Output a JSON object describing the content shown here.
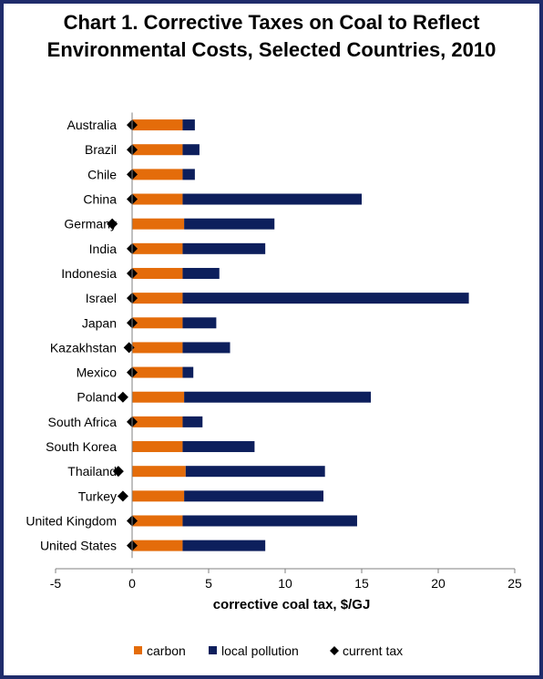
{
  "chart_data": {
    "type": "bar",
    "orientation": "horizontal",
    "stacked": true,
    "title_line1": "Chart 1. Corrective Taxes on Coal to Reflect",
    "title_line2": "Environmental Costs, Selected Countries, 2010",
    "xlabel": "corrective coal tax, $/GJ",
    "ylabel": "",
    "xlim": [
      -5,
      25
    ],
    "xticks": [
      -5,
      0,
      5,
      10,
      15,
      20,
      25
    ],
    "grid": false,
    "legend_position": "bottom",
    "categories": [
      "Australia",
      "Brazil",
      "Chile",
      "China",
      "Germany",
      "India",
      "Indonesia",
      "Israel",
      "Japan",
      "Kazakhstan",
      "Mexico",
      "Poland",
      "South Africa",
      "South Korea",
      "Thailand",
      "Turkey",
      "United Kingdom",
      "United States"
    ],
    "series": [
      {
        "name": "carbon",
        "color": "#e46c0a",
        "values": [
          3.3,
          3.3,
          3.3,
          3.3,
          3.4,
          3.3,
          3.3,
          3.3,
          3.3,
          3.3,
          3.3,
          3.4,
          3.3,
          3.3,
          3.5,
          3.4,
          3.3,
          3.3
        ]
      },
      {
        "name": "local pollution",
        "color": "#0d1f5c",
        "values": [
          0.8,
          1.1,
          0.8,
          11.7,
          5.9,
          5.4,
          2.4,
          18.7,
          2.2,
          3.1,
          0.7,
          12.2,
          1.3,
          4.7,
          9.1,
          9.1,
          11.4,
          5.4
        ]
      },
      {
        "name": "current tax",
        "color": "#000000",
        "marker": "diamond",
        "values": [
          0,
          0,
          0,
          0,
          -1.3,
          0,
          0,
          0,
          0,
          -0.2,
          0,
          -0.6,
          0,
          null,
          -0.9,
          -0.6,
          0,
          0
        ]
      }
    ]
  }
}
